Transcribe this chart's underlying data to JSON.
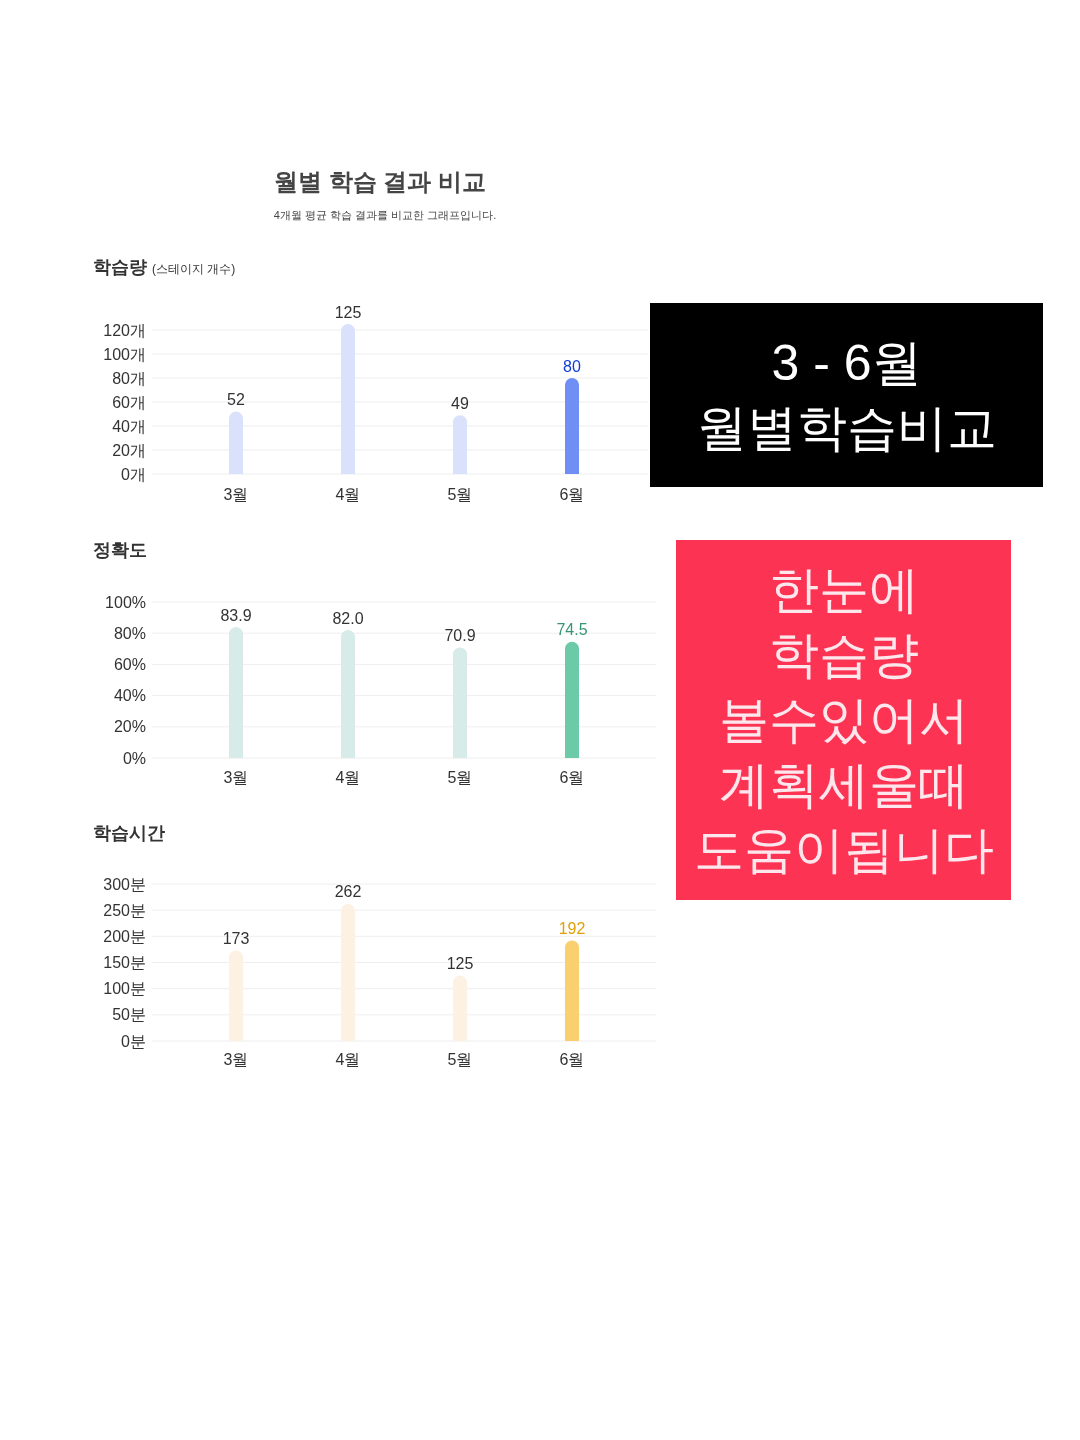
{
  "chart_data": [
    {
      "type": "other",
      "title": "월별 학습 결과 비교",
      "subtitle": "4개월 평균 학습 결과를 비교한 그래프입니다."
    },
    {
      "type": "bar",
      "title": "학습량",
      "subtitle": "(스테이지 개수)",
      "categories": [
        "3월",
        "4월",
        "5월",
        "6월"
      ],
      "values": [
        52,
        125,
        49,
        80
      ],
      "colors": [
        "#d9e1fb",
        "#d9e1fb",
        "#d9e1fb",
        "#6f8ff5"
      ],
      "ylim": [
        0,
        125
      ],
      "yticks": [
        {
          "value": 0,
          "label": "0개"
        },
        {
          "value": 20,
          "label": "20개"
        },
        {
          "value": 40,
          "label": "40개"
        },
        {
          "value": 60,
          "label": "60개"
        },
        {
          "value": 80,
          "label": "80개"
        },
        {
          "value": 100,
          "label": "100개"
        },
        {
          "value": 120,
          "label": "120개"
        }
      ],
      "grid": "y",
      "data_labels": true
    },
    {
      "type": "other",
      "color": "#000000",
      "annotations": [
        "3 - 6월",
        "월별학습비교"
      ]
    },
    {
      "type": "bar",
      "title": "정확도",
      "categories": [
        "3월",
        "4월",
        "5월",
        "6월"
      ],
      "values": [
        83.9,
        82.0,
        70.9,
        74.5
      ],
      "value_labels": [
        "83.9",
        "82.0",
        "70.9",
        "74.5"
      ],
      "colors": [
        "#d7ece9",
        "#d7ece9",
        "#d7ece9",
        "#6ccaa9"
      ],
      "ylim": [
        0,
        100
      ],
      "yticks": [
        {
          "value": 0,
          "label": "0%"
        },
        {
          "value": 20,
          "label": "20%"
        },
        {
          "value": 40,
          "label": "40%"
        },
        {
          "value": 60,
          "label": "60%"
        },
        {
          "value": 80,
          "label": "80%"
        },
        {
          "value": 100,
          "label": "100%"
        }
      ],
      "grid": "y"
    },
    {
      "type": "other",
      "color": "#fc3352",
      "annotations": [
        "한눈에",
        "학습량",
        "볼수있어서",
        "계획세울때",
        "도움이됩니다"
      ]
    },
    {
      "type": "bar",
      "title": "학습시간",
      "categories": [
        "3월",
        "4월",
        "5월",
        "6월"
      ],
      "values": [
        173,
        262,
        125,
        192
      ],
      "colors": [
        "#fdf1e3",
        "#fdf1e3",
        "#fdf1e3",
        "#f9cf6f"
      ],
      "ylim": [
        0,
        300
      ],
      "yticks": [
        {
          "value": 0,
          "label": "0분"
        },
        {
          "value": 50,
          "label": "50분"
        },
        {
          "value": 100,
          "label": "100분"
        },
        {
          "value": 150,
          "label": "150분"
        },
        {
          "value": 200,
          "label": "200분"
        },
        {
          "value": 250,
          "label": "250분"
        },
        {
          "value": 300,
          "label": "300분"
        }
      ],
      "grid": "y",
      "data_labels": true
    }
  ]
}
